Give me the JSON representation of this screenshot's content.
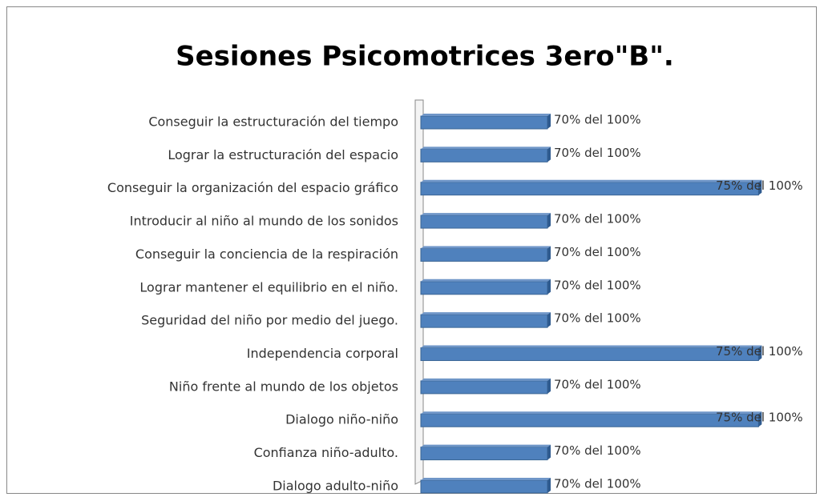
{
  "chart_data": {
    "type": "bar",
    "orientation": "horizontal",
    "title": "Sesiones Psicomotrices 3ero\"B\".",
    "categories": [
      "Conseguir la estructuración del tiempo",
      "Lograr la estructuración del espacio",
      "Conseguir la organización del espacio gráfico",
      "Introducir al niño al mundo de los sonidos",
      "Conseguir la conciencia de la respiración",
      "Lograr mantener el equilibrio en el niño.",
      "Seguridad del niño por medio del juego.",
      "Independencia corporal",
      "Niño frente al mundo de los objetos",
      "Dialogo niño-niño",
      "Confianza niño-adulto.",
      "Dialogo adulto-niño"
    ],
    "values": [
      70,
      70,
      75,
      70,
      70,
      70,
      70,
      75,
      70,
      75,
      70,
      70
    ],
    "value_labels": [
      "70% del 100%",
      "70% del 100%",
      "75% del 100%",
      "70% del 100%",
      "70% del 100%",
      "70% del 100%",
      "70% del 100%",
      "75% del 100%",
      "70% del 100%",
      "75% del 100%",
      "70% del 100%",
      "70% del 100%"
    ],
    "color": "#4f81bd",
    "xlim": [
      67,
      76
    ]
  }
}
